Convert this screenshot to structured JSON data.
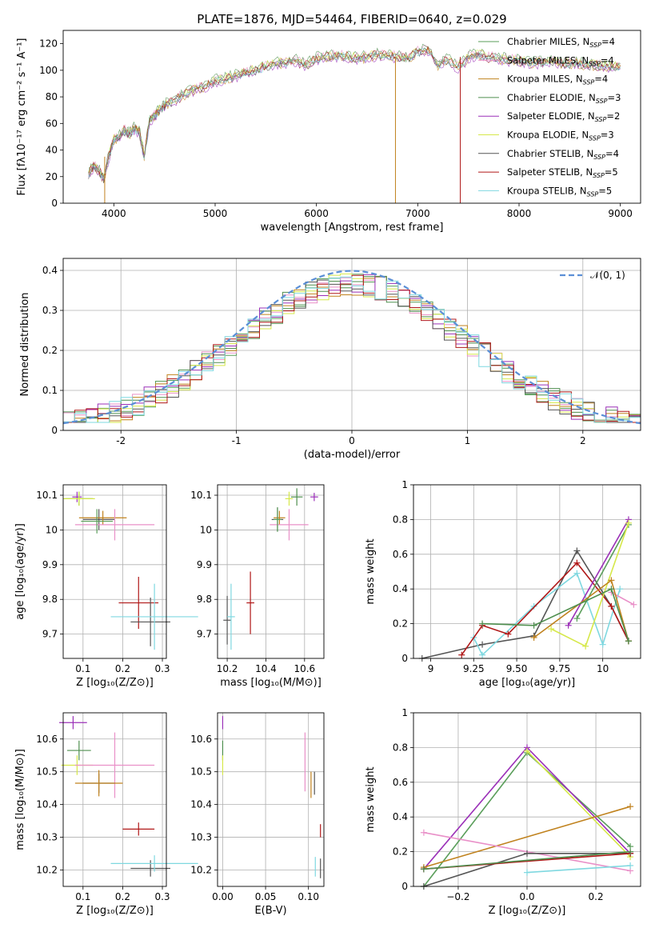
{
  "figure": {
    "title": "PLATE=1876, MJD=54464, FIBERID=0640, z=0.029"
  },
  "models": [
    {
      "name": "Chabrier MILES",
      "nssp": "4",
      "color": "#5a9e5a"
    },
    {
      "name": "Salpeter MILES",
      "nssp": "4",
      "color": "#e990c8"
    },
    {
      "name": "Kroupa MILES",
      "nssp": "4",
      "color": "#c0821e"
    },
    {
      "name": "Chabrier ELODIE",
      "nssp": "3",
      "color": "#4f8f4f"
    },
    {
      "name": "Salpeter ELODIE",
      "nssp": "2",
      "color": "#9b30b8"
    },
    {
      "name": "Kroupa ELODIE",
      "nssp": "3",
      "color": "#d6e84a"
    },
    {
      "name": "Chabrier STELIB",
      "nssp": "4",
      "color": "#555555"
    },
    {
      "name": "Salpeter STELIB",
      "nssp": "5",
      "color": "#b01818"
    },
    {
      "name": "Kroupa STELIB",
      "nssp": "5",
      "color": "#7fd8e0"
    }
  ],
  "chart_data": [
    {
      "id": "spectrum",
      "type": "line",
      "title": "PLATE=1876, MJD=54464, FIBERID=0640, z=0.029",
      "xlabel": "wavelength [Angstrom, rest frame]",
      "ylabel": "Flux [fλ10⁻¹⁷ erg cm⁻² s⁻¹ A⁻¹]",
      "xlim": [
        3500,
        9200
      ],
      "ylim": [
        0,
        130
      ],
      "xticks": [
        4000,
        5000,
        6000,
        7000,
        8000,
        9000
      ],
      "yticks": [
        0,
        20,
        40,
        60,
        80,
        100,
        120
      ],
      "x": [
        3750,
        3800,
        3850,
        3900,
        3950,
        4000,
        4050,
        4100,
        4150,
        4200,
        4250,
        4300,
        4350,
        4400,
        4450,
        4500,
        4600,
        4700,
        4800,
        4900,
        5000,
        5100,
        5200,
        5300,
        5400,
        5500,
        5600,
        5700,
        5800,
        5900,
        6000,
        6100,
        6200,
        6300,
        6400,
        6500,
        6600,
        6700,
        6800,
        6900,
        7000,
        7100,
        7200,
        7300,
        7400,
        7500,
        7600,
        7700,
        7800,
        7900,
        8000,
        8100,
        8200,
        8300,
        8400,
        8500,
        8600,
        8700,
        8800,
        8900,
        9000
      ],
      "y": [
        22,
        28,
        25,
        18,
        35,
        48,
        50,
        55,
        52,
        56,
        54,
        35,
        62,
        66,
        70,
        74,
        78,
        82,
        86,
        88,
        92,
        94,
        96,
        99,
        100,
        103,
        105,
        106,
        107,
        104,
        109,
        110,
        111,
        111,
        109,
        110,
        112,
        111,
        110,
        109,
        114,
        116,
        104,
        108,
        102,
        110,
        112,
        110,
        109,
        108,
        107,
        106,
        106,
        107,
        106,
        105,
        105,
        104,
        104,
        103,
        103
      ],
      "grid": false,
      "legend": "top-right"
    },
    {
      "id": "residuals",
      "type": "histogram",
      "xlabel": "(data-model)/error",
      "ylabel": "Normed distribution",
      "xlim": [
        -2.5,
        2.5
      ],
      "ylim": [
        0,
        0.43
      ],
      "xticks": [
        -2,
        -1,
        0,
        1,
        2
      ],
      "yticks": [
        0.0,
        0.1,
        0.2,
        0.3,
        0.4
      ],
      "reference": "𝒩(0, 1)",
      "grid": true,
      "legend": "top-right"
    },
    {
      "id": "age_vs_Z",
      "type": "scatter",
      "xlabel": "Z [log₁₀(Z/Z⊙)]",
      "ylabel": "age  [log₁₀(age/yr)]",
      "xlim": [
        0.05,
        0.31
      ],
      "ylim": [
        9.63,
        10.13
      ],
      "xticks": [
        0.1,
        0.2,
        0.3
      ],
      "yticks": [
        9.7,
        9.8,
        9.9,
        10.0,
        10.1
      ],
      "points": [
        {
          "x": 0.085,
          "y": 10.095,
          "xerr": 0.012,
          "yerr": 0.015,
          "model": 4
        },
        {
          "x": 0.09,
          "y": 10.09,
          "xerr": 0.035,
          "yerr": 0.02,
          "model": 3
        },
        {
          "x": 0.09,
          "y": 10.09,
          "xerr": 0.04,
          "yerr": 0.02,
          "model": 5
        },
        {
          "x": 0.14,
          "y": 10.03,
          "xerr": 0.04,
          "yerr": 0.03,
          "model": 6
        },
        {
          "x": 0.15,
          "y": 10.035,
          "xerr": 0.06,
          "yerr": 0.02,
          "model": 2
        },
        {
          "x": 0.18,
          "y": 10.015,
          "xerr": 0.1,
          "yerr": 0.045,
          "model": 1
        },
        {
          "x": 0.135,
          "y": 10.025,
          "xerr": 0.04,
          "yerr": 0.035,
          "model": 0
        },
        {
          "x": 0.24,
          "y": 9.79,
          "xerr": 0.05,
          "yerr": 0.075,
          "model": 7
        },
        {
          "x": 0.27,
          "y": 9.735,
          "xerr": 0.05,
          "yerr": 0.07,
          "model": 6
        },
        {
          "x": 0.28,
          "y": 9.75,
          "xerr": 0.11,
          "yerr": 0.095,
          "model": 8
        }
      ]
    },
    {
      "id": "age_vs_mass",
      "type": "scatter",
      "xlabel": "mass [log₁₀(M/M⊙)]",
      "ylabel": "",
      "xlim": [
        10.15,
        10.7
      ],
      "ylim": [
        9.63,
        10.13
      ],
      "xticks": [
        10.2,
        10.4,
        10.6
      ],
      "yticks": [
        9.7,
        9.8,
        9.9,
        10.0,
        10.1
      ],
      "points": [
        {
          "x": 10.65,
          "y": 10.095,
          "xerr": 0.02,
          "yerr": 0.012,
          "model": 4
        },
        {
          "x": 10.56,
          "y": 10.095,
          "xerr": 0.03,
          "yerr": 0.025,
          "model": 3
        },
        {
          "x": 10.52,
          "y": 10.09,
          "xerr": 0.02,
          "yerr": 0.02,
          "model": 5
        },
        {
          "x": 10.46,
          "y": 10.03,
          "xerr": 0.03,
          "yerr": 0.035,
          "model": 6
        },
        {
          "x": 10.47,
          "y": 10.035,
          "xerr": 0.03,
          "yerr": 0.02,
          "model": 2
        },
        {
          "x": 10.52,
          "y": 10.015,
          "xerr": 0.1,
          "yerr": 0.045,
          "model": 1
        },
        {
          "x": 10.46,
          "y": 10.03,
          "xerr": 0.02,
          "yerr": 0.035,
          "model": 0
        },
        {
          "x": 10.32,
          "y": 9.79,
          "xerr": 0.02,
          "yerr": 0.09,
          "model": 7
        },
        {
          "x": 10.2,
          "y": 9.74,
          "xerr": 0.02,
          "yerr": 0.07,
          "model": 6
        },
        {
          "x": 10.22,
          "y": 9.75,
          "xerr": 0.02,
          "yerr": 0.095,
          "model": 8
        }
      ]
    },
    {
      "id": "massweight_vs_age",
      "type": "line",
      "xlabel": "age  [log₁₀(age/yr)]",
      "ylabel": "mass weight",
      "xlim": [
        8.9,
        10.22
      ],
      "ylim": [
        0,
        1
      ],
      "xticks": [
        9.0,
        9.25,
        9.5,
        9.75,
        10.0
      ],
      "yticks": [
        0.0,
        0.2,
        0.4,
        0.6,
        0.8,
        1.0
      ],
      "series": [
        {
          "model": 6,
          "x": [
            8.95,
            9.3,
            9.6,
            9.85,
            10.05,
            10.15
          ],
          "y": [
            0.0,
            0.08,
            0.13,
            0.62,
            0.3,
            0.1
          ]
        },
        {
          "model": 8,
          "x": [
            9.25,
            9.3,
            9.6,
            9.85,
            10.0,
            10.1
          ],
          "y": [
            0.12,
            0.02,
            0.3,
            0.49,
            0.08,
            0.4
          ]
        },
        {
          "model": 7,
          "x": [
            9.18,
            9.3,
            9.45,
            9.85,
            10.05,
            10.15
          ],
          "y": [
            0.02,
            0.19,
            0.14,
            0.55,
            0.3,
            0.1
          ]
        },
        {
          "model": 4,
          "x": [
            9.8,
            10.15
          ],
          "y": [
            0.19,
            0.8
          ]
        },
        {
          "model": 0,
          "x": [
            9.85,
            10.15
          ],
          "y": [
            0.23,
            0.77
          ]
        },
        {
          "model": 5,
          "x": [
            9.7,
            9.9,
            10.15
          ],
          "y": [
            0.17,
            0.07,
            0.78
          ]
        },
        {
          "model": 1,
          "x": [
            10.05,
            10.18
          ],
          "y": [
            0.38,
            0.31
          ]
        },
        {
          "model": 2,
          "x": [
            9.6,
            10.05,
            10.15
          ],
          "y": [
            0.12,
            0.45,
            0.1
          ]
        },
        {
          "model": 3,
          "x": [
            9.3,
            9.6,
            10.05,
            10.15
          ],
          "y": [
            0.2,
            0.19,
            0.4,
            0.1
          ]
        }
      ]
    },
    {
      "id": "mass_vs_Z",
      "type": "scatter",
      "xlabel": "Z [log₁₀(Z/Z⊙)]",
      "ylabel": "mass [log₁₀(M/M⊙)]",
      "xlim": [
        0.05,
        0.31
      ],
      "ylim": [
        10.15,
        10.68
      ],
      "xticks": [
        0.1,
        0.2,
        0.3
      ],
      "yticks": [
        10.2,
        10.3,
        10.4,
        10.5,
        10.6
      ],
      "points": [
        {
          "x": 0.075,
          "y": 10.65,
          "xerr": 0.035,
          "yerr": 0.02,
          "model": 4
        },
        {
          "x": 0.09,
          "y": 10.565,
          "xerr": 0.03,
          "yerr": 0.03,
          "model": 3
        },
        {
          "x": 0.085,
          "y": 10.52,
          "xerr": 0.04,
          "yerr": 0.03,
          "model": 5
        },
        {
          "x": 0.18,
          "y": 10.52,
          "xerr": 0.1,
          "yerr": 0.1,
          "model": 1
        },
        {
          "x": 0.14,
          "y": 10.465,
          "xerr": 0.04,
          "yerr": 0.03,
          "model": 6
        },
        {
          "x": 0.14,
          "y": 10.465,
          "xerr": 0.06,
          "yerr": 0.04,
          "model": 2
        },
        {
          "x": 0.24,
          "y": 10.325,
          "xerr": 0.04,
          "yerr": 0.02,
          "model": 7
        },
        {
          "x": 0.27,
          "y": 10.205,
          "xerr": 0.05,
          "yerr": 0.025,
          "model": 6
        },
        {
          "x": 0.28,
          "y": 10.22,
          "xerr": 0.11,
          "yerr": 0.025,
          "model": 8
        }
      ]
    },
    {
      "id": "mass_vs_ebv",
      "type": "scatter",
      "xlabel": "E(B-V)",
      "ylabel": "",
      "xlim": [
        -0.006,
        0.118
      ],
      "ylim": [
        10.15,
        10.68
      ],
      "xticks": [
        0.0,
        0.05,
        0.1
      ],
      "xticklabels": [
        "0.00",
        "0.05",
        "0.10"
      ],
      "yticks": [
        10.2,
        10.3,
        10.4,
        10.5,
        10.6
      ],
      "points": [
        {
          "x": 0.0,
          "y": 10.65,
          "yerr": 0.02,
          "model": 4
        },
        {
          "x": 0.0,
          "y": 10.565,
          "yerr": 0.03,
          "model": 3
        },
        {
          "x": 0.0,
          "y": 10.52,
          "yerr": 0.03,
          "model": 5
        },
        {
          "x": 0.096,
          "y": 10.53,
          "yerr": 0.09,
          "model": 1
        },
        {
          "x": 0.103,
          "y": 10.46,
          "yerr": 0.04,
          "model": 2
        },
        {
          "x": 0.107,
          "y": 10.465,
          "yerr": 0.035,
          "model": 6
        },
        {
          "x": 0.114,
          "y": 10.32,
          "yerr": 0.02,
          "model": 7
        },
        {
          "x": 0.114,
          "y": 10.205,
          "yerr": 0.03,
          "model": 6
        },
        {
          "x": 0.108,
          "y": 10.21,
          "yerr": 0.03,
          "model": 8
        }
      ]
    },
    {
      "id": "massweight_vs_Z",
      "type": "line",
      "xlabel": "Z [log₁₀(Z/Z⊙)]",
      "ylabel": "mass weight",
      "xlim": [
        -0.33,
        0.33
      ],
      "ylim": [
        0,
        1
      ],
      "xticks": [
        -0.2,
        0.0,
        0.2
      ],
      "xticklabels": [
        "−0.2",
        "0.0",
        "0.2"
      ],
      "yticks": [
        0.0,
        0.2,
        0.4,
        0.6,
        0.8,
        1.0
      ],
      "series": [
        {
          "model": 0,
          "x": [
            -0.3,
            0.0,
            0.3
          ],
          "y": [
            0.0,
            0.77,
            0.23
          ]
        },
        {
          "model": 4,
          "x": [
            -0.3,
            0.0,
            0.3
          ],
          "y": [
            0.1,
            0.8,
            0.19
          ]
        },
        {
          "model": 5,
          "x": [
            0.0,
            0.3
          ],
          "y": [
            0.78,
            0.17
          ]
        },
        {
          "model": 2,
          "x": [
            -0.3,
            0.3
          ],
          "y": [
            0.11,
            0.46
          ]
        },
        {
          "model": 1,
          "x": [
            -0.3,
            0.3
          ],
          "y": [
            0.31,
            0.09
          ]
        },
        {
          "model": 6,
          "x": [
            -0.3,
            0.0,
            0.3
          ],
          "y": [
            0.0,
            0.19,
            0.19
          ]
        },
        {
          "model": 8,
          "x": [
            0.0,
            0.3
          ],
          "y": [
            0.08,
            0.12
          ]
        },
        {
          "model": 7,
          "x": [
            -0.3,
            0.3
          ],
          "y": [
            0.1,
            0.19
          ]
        },
        {
          "model": 3,
          "x": [
            -0.3,
            0.3
          ],
          "y": [
            0.1,
            0.2
          ]
        }
      ]
    }
  ]
}
